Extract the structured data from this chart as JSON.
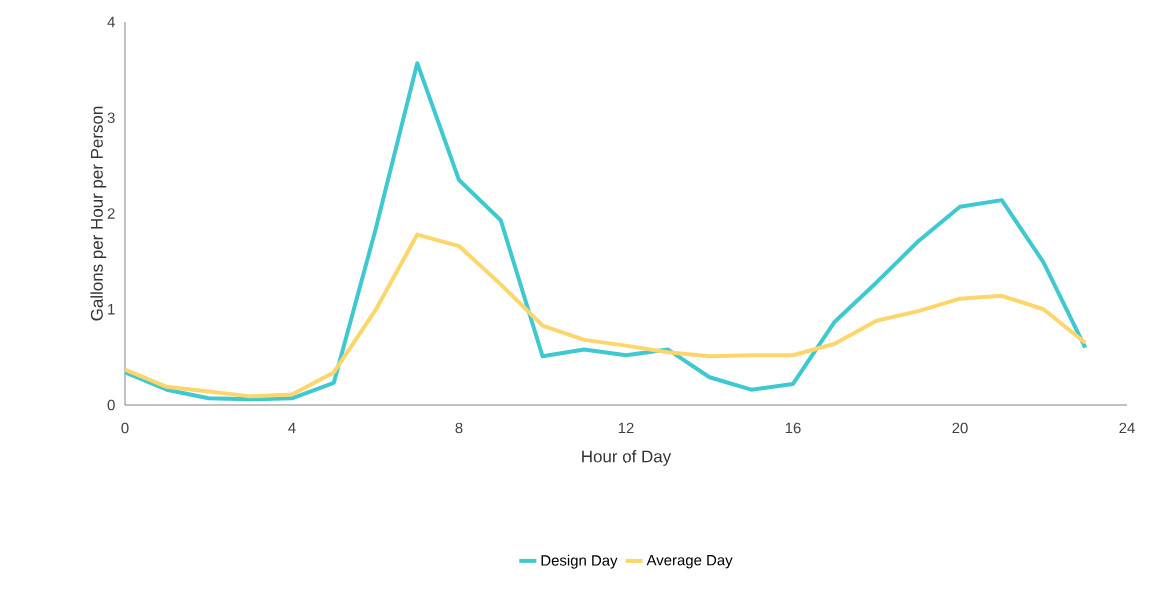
{
  "chart_data": {
    "type": "line",
    "xlabel": "Hour of Day",
    "ylabel": "Gallons per Hour per Person",
    "x": [
      0,
      1,
      2,
      3,
      4,
      5,
      6,
      7,
      8,
      9,
      10,
      11,
      12,
      13,
      14,
      15,
      16,
      17,
      18,
      19,
      20,
      21,
      22,
      23
    ],
    "series": [
      {
        "name": "Design Day",
        "color": "#3ec8cf",
        "values": [
          0.34,
          0.16,
          0.07,
          0.06,
          0.07,
          0.23,
          1.83,
          3.57,
          2.35,
          1.93,
          0.51,
          0.58,
          0.52,
          0.58,
          0.29,
          0.16,
          0.22,
          0.87,
          1.28,
          1.71,
          2.07,
          2.14,
          1.49,
          0.6
        ]
      },
      {
        "name": "Average Day",
        "color": "#fcd66a",
        "values": [
          0.37,
          0.19,
          0.14,
          0.09,
          0.11,
          0.34,
          0.99,
          1.78,
          1.66,
          1.26,
          0.83,
          0.68,
          0.62,
          0.55,
          0.51,
          0.52,
          0.52,
          0.64,
          0.88,
          0.98,
          1.11,
          1.14,
          1.0,
          0.65
        ]
      }
    ],
    "xlim": [
      0,
      24
    ],
    "xticks": [
      0,
      4,
      8,
      12,
      16,
      20,
      24
    ],
    "ylim": [
      0,
      4
    ],
    "yticks": [
      0,
      1,
      2,
      3,
      4
    ],
    "grid": false,
    "legend": "bottom",
    "marker": "none",
    "line_style": "solid"
  }
}
